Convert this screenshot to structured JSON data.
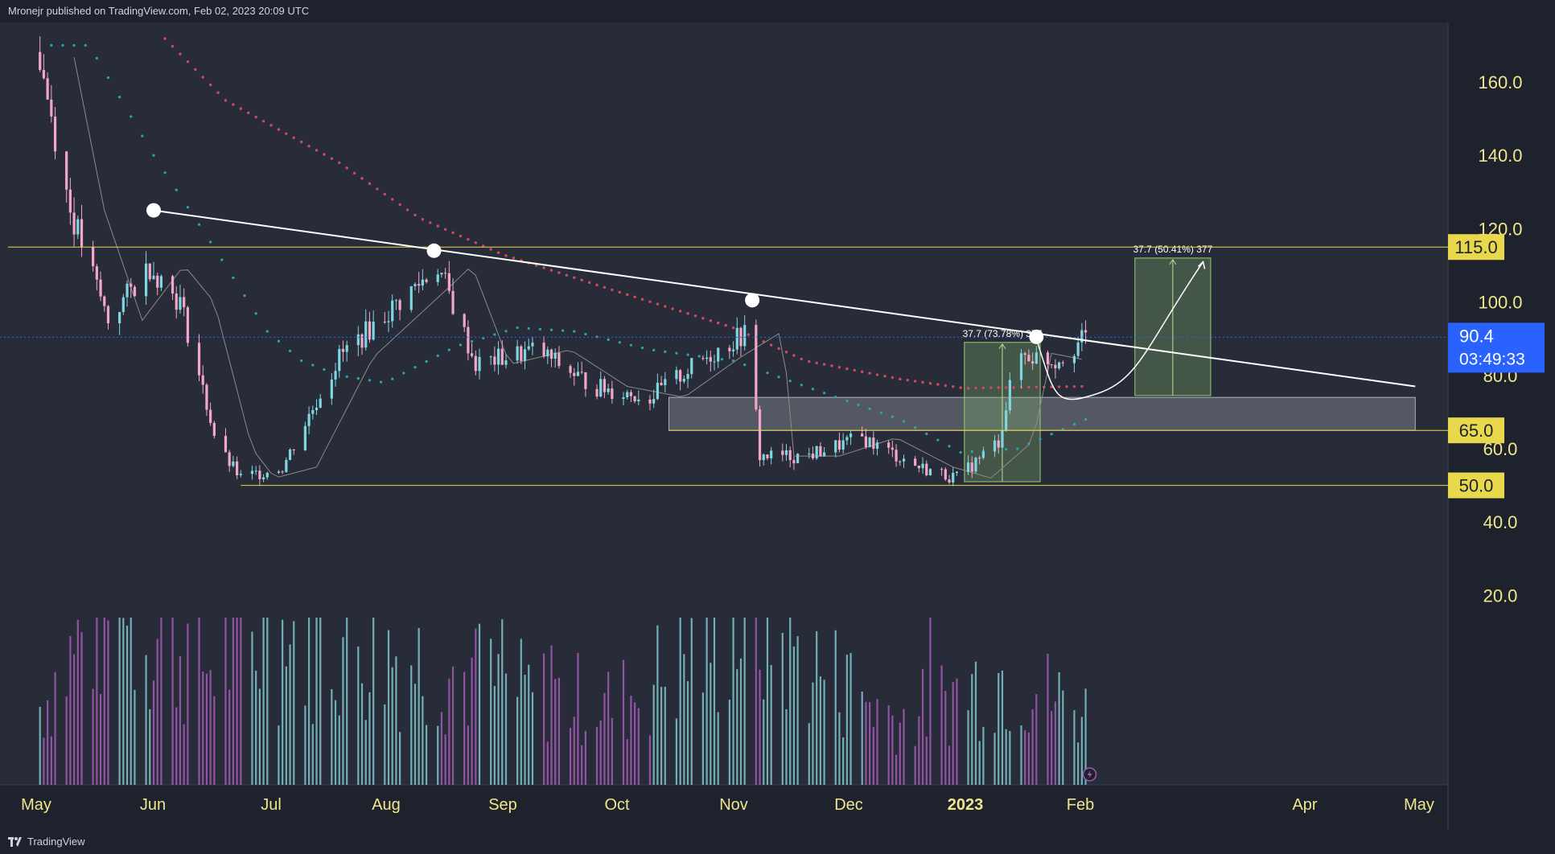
{
  "header": {
    "published_text": "Mronejr published on TradingView.com, Feb 02, 2023 20:09 UTC"
  },
  "footer": {
    "brand": "TradingView"
  },
  "colors": {
    "background": "#282c38",
    "axis_bg": "#1e222d",
    "axis_text": "#d1d4dc",
    "price_text": "#f0e68c",
    "candle_up": "#7ed6e0",
    "candle_down": "#f2a7c8",
    "ema_slow": "#d04a5e",
    "ema_fast": "#2aa6b0",
    "level_line": "#e9d84c",
    "last_price_bg": "#2962ff",
    "vol_up": "#7fc6cc",
    "vol_down": "#a35ab6"
  },
  "chart_data": {
    "type": "candlestick",
    "title": "",
    "xlabel": "",
    "ylabel": "",
    "x_ticks": [
      "May",
      "Jun",
      "Jul",
      "Aug",
      "Sep",
      "Oct",
      "Nov",
      "Dec",
      "2023",
      "Feb",
      "Apr",
      "May"
    ],
    "y_ticks": [
      "160.0",
      "140.0",
      "120.0",
      "100.0",
      "80.0",
      "60.0",
      "40.0",
      "20.0"
    ],
    "ylim": [
      5,
      172
    ],
    "grid": false,
    "price_series_anchors": [
      [
        "2022-05-01",
        172
      ],
      [
        "2022-05-10",
        125
      ],
      [
        "2022-05-20",
        95
      ],
      [
        "2022-05-31",
        110
      ],
      [
        "2022-06-08",
        100
      ],
      [
        "2022-06-18",
        60
      ],
      [
        "2022-06-24",
        52
      ],
      [
        "2022-07-05",
        55
      ],
      [
        "2022-07-20",
        85
      ],
      [
        "2022-08-10",
        105
      ],
      [
        "2022-08-15",
        110
      ],
      [
        "2022-08-25",
        83
      ],
      [
        "2022-09-10",
        87
      ],
      [
        "2022-09-25",
        77
      ],
      [
        "2022-10-10",
        74
      ],
      [
        "2022-10-25",
        85
      ],
      [
        "2022-11-05",
        92
      ],
      [
        "2022-11-08",
        58
      ],
      [
        "2022-11-20",
        58
      ],
      [
        "2022-12-05",
        63
      ],
      [
        "2022-12-20",
        55
      ],
      [
        "2022-12-30",
        52
      ],
      [
        "2023-01-10",
        62
      ],
      [
        "2023-01-15",
        86
      ],
      [
        "2023-01-25",
        84
      ],
      [
        "2023-02-02",
        90.4
      ]
    ],
    "ema_slow_anchors": [
      [
        "2022-06-01",
        175
      ],
      [
        "2022-06-20",
        155
      ],
      [
        "2022-07-20",
        138
      ],
      [
        "2022-08-10",
        123
      ],
      [
        "2022-09-01",
        113
      ],
      [
        "2022-10-01",
        103
      ],
      [
        "2022-11-01",
        93
      ],
      [
        "2022-11-20",
        84
      ],
      [
        "2022-12-15",
        79
      ],
      [
        "2023-01-01",
        76.5
      ],
      [
        "2023-02-02",
        77
      ]
    ],
    "ema_fast_anchors": [
      [
        "2022-05-15",
        170
      ],
      [
        "2022-06-01",
        140
      ],
      [
        "2022-06-15",
        118
      ],
      [
        "2022-07-01",
        92
      ],
      [
        "2022-07-10",
        84
      ],
      [
        "2022-07-20",
        80
      ],
      [
        "2022-08-01",
        78
      ],
      [
        "2022-08-20",
        88
      ],
      [
        "2022-09-05",
        93
      ],
      [
        "2022-09-20",
        92
      ],
      [
        "2022-10-10",
        87
      ],
      [
        "2022-11-01",
        84
      ],
      [
        "2022-11-20",
        77
      ],
      [
        "2022-12-15",
        68
      ],
      [
        "2022-12-31",
        59
      ],
      [
        "2023-01-15",
        60
      ],
      [
        "2023-02-02",
        68
      ]
    ],
    "volume_anchors": [
      [
        "2022-05-01",
        8
      ],
      [
        "2022-05-20",
        22
      ],
      [
        "2022-06-15",
        14
      ],
      [
        "2022-07-01",
        18
      ],
      [
        "2022-08-01",
        16
      ],
      [
        "2022-09-01",
        11
      ],
      [
        "2022-10-01",
        9
      ],
      [
        "2022-11-05",
        20
      ],
      [
        "2022-11-22",
        14
      ],
      [
        "2022-12-15",
        7
      ],
      [
        "2023-01-10",
        13
      ],
      [
        "2023-02-02",
        8
      ]
    ],
    "last_price": {
      "value": 90.4,
      "label": "90.4",
      "countdown": "03:49:33"
    },
    "levels": [
      {
        "value": 115,
        "label": "115.0"
      },
      {
        "value": 65,
        "label": "65.0"
      },
      {
        "value": 50,
        "label": "50.0"
      }
    ],
    "trendline": {
      "start": [
        "2022-06-01",
        125
      ],
      "end": [
        "2023-04-30",
        77
      ]
    },
    "pivots": [
      [
        "2022-06-01",
        125
      ],
      [
        "2022-08-14",
        114
      ],
      [
        "2022-11-06",
        100.5
      ],
      [
        "2023-01-20",
        90.5
      ]
    ],
    "zone": {
      "x0": "2022-10-15",
      "x1": "2023-04-30",
      "y0": 65,
      "y1": 74
    },
    "measure_past": {
      "x0": "2023-01-01",
      "x1": "2023-01-21",
      "y0": 51,
      "y1": 89,
      "label": "37.7 (73.78%) 377"
    },
    "measure_future": {
      "x0": "2023-02-15",
      "x1": "2023-03-07",
      "y0": 74.5,
      "y1": 112,
      "label": "37.7 (50.41%) 377"
    },
    "projection": [
      [
        "2023-01-20",
        90
      ],
      [
        "2023-01-25",
        73.5
      ],
      [
        "2023-02-05",
        75
      ],
      [
        "2023-02-18",
        88
      ],
      [
        "2023-03-05",
        111
      ]
    ]
  }
}
